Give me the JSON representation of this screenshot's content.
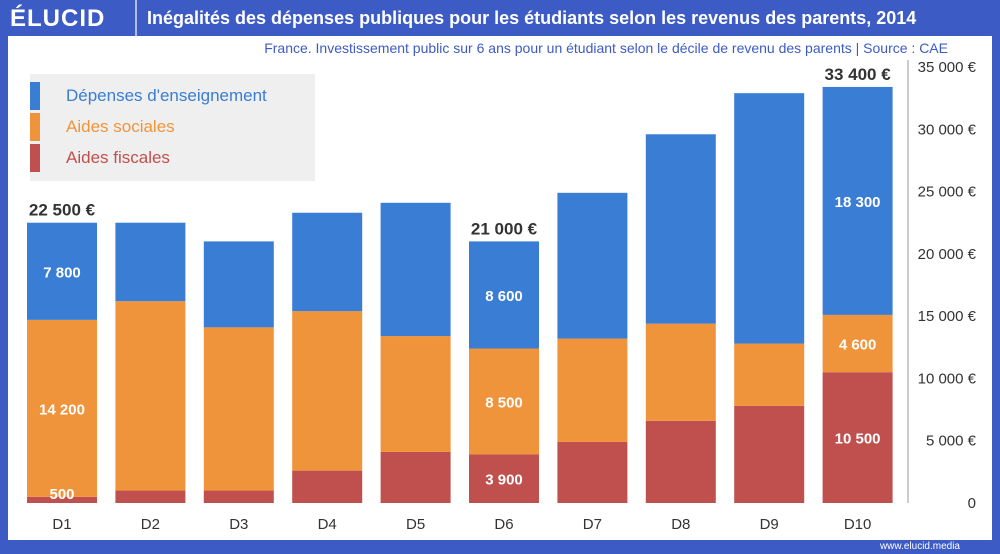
{
  "header": {
    "logo": "ÉLUCID",
    "title": "Inégalités des dépenses publiques pour les étudiants selon les revenus des parents, 2014",
    "subtitle": "France. Investissement public sur 6 ans pour un étudiant selon le décile de revenu des parents |  Source : CAE"
  },
  "footer": {
    "url": "www.elucid.media"
  },
  "colors": {
    "frame": "#3d5bc4",
    "enseignement": "#3a7dd4",
    "sociales": "#f0943b",
    "fiscales": "#c0504d"
  },
  "chart_data": {
    "type": "bar",
    "stacked": true,
    "title": "Inégalités des dépenses publiques pour les étudiants selon les revenus des parents, 2014",
    "categories": [
      "D1",
      "D2",
      "D3",
      "D4",
      "D5",
      "D6",
      "D7",
      "D8",
      "D9",
      "D10"
    ],
    "series": [
      {
        "name": "Aides fiscales",
        "values": [
          500,
          1000,
          1000,
          2600,
          4100,
          3900,
          4900,
          6600,
          7800,
          10500
        ]
      },
      {
        "name": "Aides sociales",
        "values": [
          14200,
          15200,
          13100,
          12800,
          9300,
          8500,
          8300,
          7800,
          5000,
          4600
        ]
      },
      {
        "name": "Dépenses d'enseignement",
        "values": [
          7800,
          6300,
          6900,
          7900,
          10700,
          8600,
          11700,
          15200,
          20100,
          18300
        ]
      }
    ],
    "legend_order": [
      "Dépenses d'enseignement",
      "Aides sociales",
      "Aides fiscales"
    ],
    "segment_labels": [
      {
        "cat": "D1",
        "series": 0,
        "text": "500"
      },
      {
        "cat": "D1",
        "series": 1,
        "text": "14 200"
      },
      {
        "cat": "D1",
        "series": 2,
        "text": "7 800"
      },
      {
        "cat": "D6",
        "series": 0,
        "text": "3 900"
      },
      {
        "cat": "D6",
        "series": 1,
        "text": "8 500"
      },
      {
        "cat": "D6",
        "series": 2,
        "text": "8 600"
      },
      {
        "cat": "D10",
        "series": 0,
        "text": "10 500"
      },
      {
        "cat": "D10",
        "series": 1,
        "text": "4 600"
      },
      {
        "cat": "D10",
        "series": 2,
        "text": "18 300"
      }
    ],
    "total_labels": [
      {
        "cat": "D1",
        "text": "22 500 €"
      },
      {
        "cat": "D6",
        "text": "21 000 €"
      },
      {
        "cat": "D10",
        "text": "33 400 €"
      }
    ],
    "ylim": [
      0,
      35000
    ],
    "yticks": [
      "0",
      "5 000 €",
      "10 000 €",
      "15 000 €",
      "20 000 €",
      "25 000 €",
      "30 000 €",
      "35 000 €"
    ],
    "yaxis_position": "right",
    "legend_position": "top-left",
    "xlabel": "",
    "ylabel": ""
  }
}
